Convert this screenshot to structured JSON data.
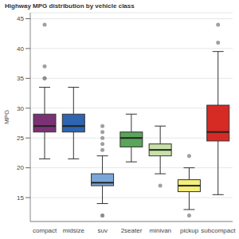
{
  "chart_data": {
    "type": "box",
    "title": "Highway MPG distribution by vehicle class",
    "y_label": "MPG",
    "categories": [
      "compact",
      "midsize",
      "suv",
      "2seater",
      "minivan",
      "pickup",
      "subcompact"
    ],
    "min": [
      21.5,
      21.5,
      14,
      21,
      19,
      13,
      15.5
    ],
    "q1": [
      26,
      26,
      17,
      23.5,
      22,
      16,
      24.5
    ],
    "median": [
      27,
      27,
      17.5,
      25,
      23,
      17,
      26
    ],
    "q3": [
      29,
      29,
      19,
      26,
      24,
      18,
      30.5
    ],
    "max": [
      33.5,
      33.5,
      22,
      29,
      27,
      20,
      39.5
    ],
    "outliers": [
      [
        35,
        35,
        37,
        44
      ],
      [],
      [
        12,
        12,
        23,
        24,
        25,
        26,
        27
      ],
      [],
      [
        17
      ],
      [
        12,
        22
      ],
      [
        41,
        44
      ]
    ],
    "colors": [
      "#7b3275",
      "#2e64b0",
      "#7aa6d8",
      "#5aa55a",
      "#c7e1a8",
      "#f4ef7a",
      "#d62a24"
    ],
    "ylim": [
      11,
      46
    ],
    "yticks": [
      15,
      20,
      25,
      30,
      35,
      40,
      45
    ],
    "grid": true
  }
}
